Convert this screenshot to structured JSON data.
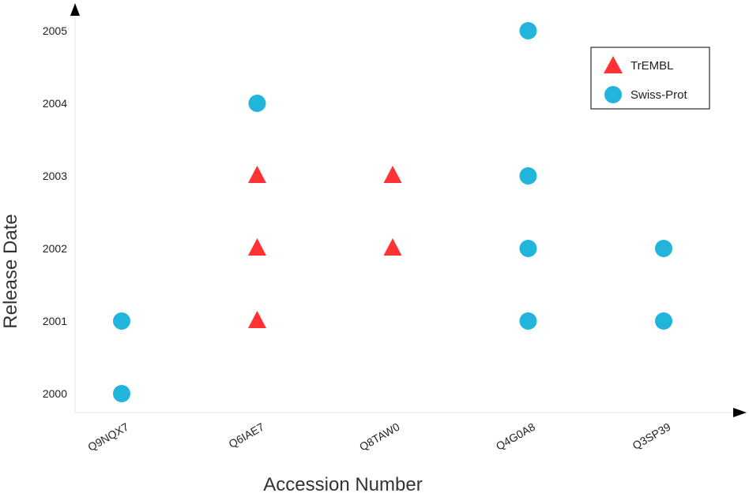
{
  "chart_data": {
    "type": "scatter",
    "title": "",
    "xlabel": "Accession Number",
    "ylabel": "Release Date",
    "categories": [
      "Q9NQX7",
      "Q6IAE7",
      "Q8TAW0",
      "Q4G0A8",
      "Q3SP39"
    ],
    "yticks": [
      "2000",
      "2001",
      "2002",
      "2003",
      "2004",
      "2005"
    ],
    "ylim": [
      2000,
      2005
    ],
    "grid": false,
    "legend_position": "top-right",
    "series": [
      {
        "name": "TrEMBL",
        "marker": "triangle",
        "color": "#ff3333",
        "points": [
          {
            "x": "Q6IAE7",
            "y": 2001
          },
          {
            "x": "Q6IAE7",
            "y": 2002
          },
          {
            "x": "Q6IAE7",
            "y": 2003
          },
          {
            "x": "Q8TAW0",
            "y": 2002
          },
          {
            "x": "Q8TAW0",
            "y": 2003
          }
        ]
      },
      {
        "name": "Swiss-Prot",
        "marker": "circle",
        "color": "#22b5dc",
        "points": [
          {
            "x": "Q9NQX7",
            "y": 2000
          },
          {
            "x": "Q9NQX7",
            "y": 2001
          },
          {
            "x": "Q6IAE7",
            "y": 2004
          },
          {
            "x": "Q4G0A8",
            "y": 2001
          },
          {
            "x": "Q4G0A8",
            "y": 2002
          },
          {
            "x": "Q4G0A8",
            "y": 2003
          },
          {
            "x": "Q4G0A8",
            "y": 2005
          },
          {
            "x": "Q3SP39",
            "y": 2001
          },
          {
            "x": "Q3SP39",
            "y": 2002
          }
        ]
      }
    ]
  }
}
